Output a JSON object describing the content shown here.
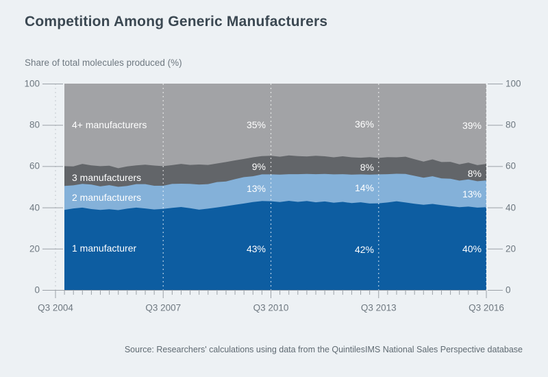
{
  "title": "Competition Among Generic Manufacturers",
  "subtitle": "Share of total molecules produced (%)",
  "source": "Source: Researchers' calculations using data from the QuintilesIMS National Sales Perspective database",
  "colors": {
    "background": "#edf1f4",
    "area_1_manufacturer": "#0d5da1",
    "area_2_manufacturers": "#84b1d9",
    "area_3_manufacturers": "#626569",
    "area_4plus_manufacturers": "#a2a3a6",
    "title_text": "#3b4852",
    "axis_text": "#6e7880",
    "in_chart_label_text": "#ffffff",
    "axis_line": "#9ba1a7",
    "gridline_gray": "#c9ced4",
    "gridline_white": "rgba(255,255,255,0.7)"
  },
  "y_axis": {
    "min": 0,
    "max": 100,
    "ticks": [
      0,
      20,
      40,
      60,
      80,
      100
    ],
    "both_sides": true
  },
  "x_axis": {
    "labels": [
      "Q3 2004",
      "Q3 2007",
      "Q3 2010",
      "Q3 2013",
      "Q3 2016"
    ],
    "minor_ticks_per_interval": 12,
    "gridlines": "dashed-vertical"
  },
  "series_labels": [
    "4+ manufacturers",
    "3 manufacturers",
    "2 manufacturers",
    "1 manufacturer"
  ],
  "annotations": {
    "columns": [
      {
        "period": "Q3 2010",
        "values": [
          "35%",
          "9%",
          "13%",
          "43%"
        ]
      },
      {
        "period": "Q3 2013",
        "values": [
          "36%",
          "8%",
          "14%",
          "42%"
        ]
      },
      {
        "period": "Q3 2016",
        "values": [
          "39%",
          "8%",
          "13%",
          "40%"
        ]
      }
    ],
    "row_order": [
      "4+ manufacturers",
      "3 manufacturers",
      "2 manufacturers",
      "1 manufacturer"
    ]
  },
  "chart_data": {
    "type": "area",
    "stacked": true,
    "title": "Competition Among Generic Manufacturers",
    "ylabel": "Share of total molecules produced (%)",
    "ylim": [
      0,
      100
    ],
    "x_start": "2004 Q4",
    "x_end": "2016 Q3",
    "x_step": "quarter",
    "x_tick_labels": [
      "Q3 2004",
      "Q3 2007",
      "Q3 2010",
      "Q3 2013",
      "Q3 2016"
    ],
    "labeled_points": {
      "Q3 2010": {
        "1 manufacturer": 43,
        "2 manufacturers": 13,
        "3 manufacturers": 9,
        "4+ manufacturers": 35
      },
      "Q3 2013": {
        "1 manufacturer": 42,
        "2 manufacturers": 14,
        "3 manufacturers": 8,
        "4+ manufacturers": 36
      },
      "Q3 2016": {
        "1 manufacturer": 40,
        "2 manufacturers": 13,
        "3 manufacturers": 8,
        "4+ manufacturers": 39
      }
    },
    "series": [
      {
        "name": "1 manufacturer",
        "color": "#0d5da1",
        "values": [
          38.8,
          39.5,
          39.9,
          39.2,
          38.8,
          39.1,
          38.7,
          39.4,
          39.9,
          39.5,
          39.0,
          39.3,
          39.8,
          40.2,
          39.6,
          38.9,
          39.4,
          40.0,
          40.6,
          41.3,
          41.9,
          42.6,
          43.1,
          43.0,
          42.6,
          43.2,
          42.7,
          43.1,
          42.5,
          42.9,
          42.3,
          42.7,
          42.1,
          42.5,
          41.9,
          42.0,
          42.4,
          43.0,
          42.4,
          41.8,
          41.3,
          41.7,
          41.1,
          40.6,
          40.1,
          40.4,
          39.9,
          40.1
        ]
      },
      {
        "name": "2 manufacturers",
        "color": "#84b1d9",
        "values": [
          11.6,
          11.2,
          11.5,
          11.9,
          11.4,
          11.7,
          11.3,
          11.0,
          11.4,
          11.8,
          11.5,
          11.2,
          11.6,
          11.3,
          11.8,
          12.2,
          11.9,
          12.3,
          12.0,
          12.4,
          12.8,
          12.5,
          12.9,
          13.0,
          13.3,
          12.9,
          13.4,
          13.1,
          13.6,
          13.3,
          13.7,
          13.4,
          13.8,
          13.5,
          14.0,
          14.0,
          13.7,
          13.3,
          13.8,
          13.5,
          13.1,
          13.4,
          13.0,
          13.3,
          12.9,
          13.2,
          12.8,
          13.0
        ]
      },
      {
        "name": "3 manufacturers",
        "color": "#626569",
        "values": [
          9.6,
          9.2,
          9.7,
          9.3,
          9.8,
          9.4,
          9.0,
          9.5,
          9.1,
          9.4,
          9.8,
          9.5,
          9.1,
          9.6,
          9.2,
          9.7,
          9.3,
          9.0,
          9.4,
          9.1,
          8.8,
          9.2,
          8.9,
          9.0,
          8.7,
          9.1,
          8.8,
          8.5,
          8.9,
          8.6,
          8.3,
          8.7,
          8.4,
          8.1,
          8.5,
          8.0,
          8.3,
          8.0,
          8.4,
          8.1,
          7.8,
          8.2,
          7.9,
          8.2,
          7.9,
          8.1,
          7.8,
          8.0
        ]
      },
      {
        "name": "4+ manufacturers",
        "color": "#a2a3a6",
        "computed_as": "remainder_to_100",
        "values": [
          40.0,
          40.1,
          38.9,
          39.6,
          40.0,
          39.8,
          41.0,
          40.1,
          39.6,
          39.3,
          39.7,
          40.0,
          39.5,
          38.9,
          39.4,
          39.2,
          39.4,
          38.7,
          38.0,
          37.2,
          36.5,
          35.7,
          35.1,
          35.0,
          35.4,
          34.8,
          35.1,
          35.3,
          35.0,
          35.2,
          35.7,
          35.2,
          35.7,
          35.9,
          35.6,
          36.0,
          35.6,
          35.7,
          35.4,
          36.6,
          37.8,
          36.7,
          38.0,
          37.9,
          39.1,
          38.3,
          39.5,
          38.9
        ]
      }
    ],
    "legend_position": "labels-inside-areas",
    "grid": "dashed vertical gridlines at major x ticks"
  }
}
